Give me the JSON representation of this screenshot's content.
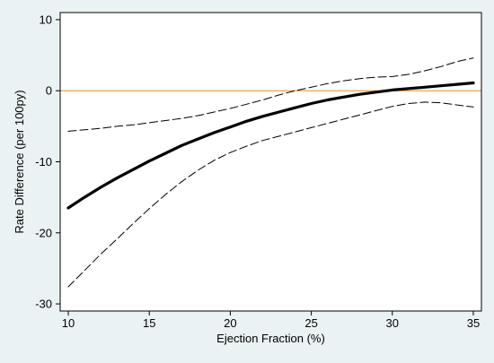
{
  "chart_data": {
    "type": "line",
    "title": "",
    "xlabel": "Ejection Fraction (%)",
    "ylabel": "Rate Difference (per 100py)",
    "xlim": [
      9.5,
      35.5
    ],
    "ylim": [
      -31,
      11
    ],
    "xticks": [
      10,
      15,
      20,
      25,
      30,
      35
    ],
    "yticks": [
      -30,
      -20,
      -10,
      0,
      10
    ],
    "grid": false,
    "legend": "none",
    "background_color": "#eaf2f3",
    "plot_background_color": "#ffffff",
    "reference_line": {
      "y": 0,
      "color": "#e8a050",
      "style": "solid"
    },
    "series": [
      {
        "style": "solid",
        "color": "#000000",
        "weight": "bold",
        "x": [
          10,
          11,
          12,
          13,
          14,
          15,
          16,
          17,
          18,
          19,
          20,
          21,
          22,
          23,
          24,
          25,
          26,
          27,
          28,
          29,
          30,
          31,
          32,
          33,
          34,
          35
        ],
        "y": [
          -16.5,
          -15.0,
          -13.6,
          -12.3,
          -11.1,
          -9.9,
          -8.8,
          -7.7,
          -6.8,
          -5.9,
          -5.1,
          -4.3,
          -3.6,
          -3.0,
          -2.4,
          -1.8,
          -1.3,
          -0.9,
          -0.5,
          -0.2,
          0.1,
          0.3,
          0.5,
          0.7,
          0.9,
          1.1
        ]
      },
      {
        "style": "dashed",
        "color": "#000000",
        "x": [
          10,
          11,
          12,
          13,
          14,
          15,
          16,
          17,
          18,
          19,
          20,
          21,
          22,
          23,
          24,
          25,
          26,
          27,
          28,
          29,
          30,
          31,
          32,
          33,
          34,
          35
        ],
        "y": [
          -5.7,
          -5.5,
          -5.3,
          -5.0,
          -4.8,
          -4.5,
          -4.2,
          -3.9,
          -3.5,
          -3.0,
          -2.5,
          -1.9,
          -1.3,
          -0.6,
          0.0,
          0.5,
          1.0,
          1.4,
          1.7,
          1.9,
          2.0,
          2.3,
          2.8,
          3.4,
          4.1,
          4.6
        ]
      },
      {
        "style": "dashed",
        "color": "#000000",
        "x": [
          10,
          11,
          12,
          13,
          14,
          15,
          16,
          17,
          18,
          19,
          20,
          21,
          22,
          23,
          24,
          25,
          26,
          27,
          28,
          29,
          30,
          31,
          32,
          33,
          34,
          35
        ],
        "y": [
          -27.6,
          -25.3,
          -23.0,
          -20.9,
          -18.7,
          -16.6,
          -14.6,
          -12.8,
          -11.2,
          -9.8,
          -8.7,
          -7.8,
          -7.0,
          -6.4,
          -5.8,
          -5.2,
          -4.6,
          -4.0,
          -3.4,
          -2.8,
          -2.2,
          -1.8,
          -1.6,
          -1.7,
          -2.0,
          -2.3
        ]
      }
    ]
  }
}
